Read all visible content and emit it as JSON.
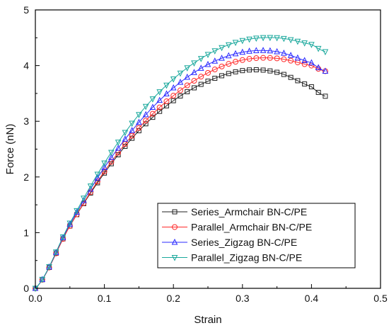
{
  "chart_data": {
    "type": "line",
    "title": "",
    "xlabel": "Strain",
    "ylabel": "Force (nN)",
    "xlim": [
      0.0,
      0.5
    ],
    "ylim": [
      0,
      5
    ],
    "xticks": [
      0.0,
      0.1,
      0.2,
      0.3,
      0.4,
      0.5
    ],
    "xtick_labels": [
      "0.0",
      "0.1",
      "0.2",
      "0.3",
      "0.4",
      "0.5"
    ],
    "yticks": [
      0,
      1,
      2,
      3,
      4,
      5
    ],
    "ytick_labels": [
      "0",
      "1",
      "2",
      "3",
      "4",
      "5"
    ],
    "grid": false,
    "legend_position": "lower-right",
    "series": [
      {
        "name": "Series_Armchair BN-C/PE",
        "color": "#222222",
        "marker": "square",
        "x_max": 0.42,
        "points": [
          [
            0,
            0
          ],
          [
            0.05,
            1.12
          ],
          [
            0.1,
            2.07
          ],
          [
            0.15,
            2.83
          ],
          [
            0.2,
            3.37
          ],
          [
            0.25,
            3.72
          ],
          [
            0.3,
            3.91
          ],
          [
            0.35,
            3.88
          ],
          [
            0.4,
            3.62
          ],
          [
            0.42,
            3.45
          ]
        ]
      },
      {
        "name": "Parallel_Armchair BN-C/PE",
        "color": "#ff2a2a",
        "marker": "circle",
        "x_max": 0.42,
        "points": [
          [
            0,
            0
          ],
          [
            0.05,
            1.12
          ],
          [
            0.1,
            2.1
          ],
          [
            0.15,
            2.88
          ],
          [
            0.2,
            3.46
          ],
          [
            0.25,
            3.87
          ],
          [
            0.3,
            4.1
          ],
          [
            0.35,
            4.13
          ],
          [
            0.4,
            4.0
          ],
          [
            0.42,
            3.9
          ]
        ]
      },
      {
        "name": "Series_Zigzag BN-C/PE",
        "color": "#2a2aff",
        "marker": "triangle-up",
        "x_max": 0.42,
        "points": [
          [
            0,
            0
          ],
          [
            0.05,
            1.15
          ],
          [
            0.1,
            2.17
          ],
          [
            0.15,
            2.98
          ],
          [
            0.2,
            3.6
          ],
          [
            0.25,
            4.02
          ],
          [
            0.3,
            4.24
          ],
          [
            0.35,
            4.25
          ],
          [
            0.4,
            4.05
          ],
          [
            0.42,
            3.9
          ]
        ]
      },
      {
        "name": "Parallel_Zigzag BN-C/PE",
        "color": "#1aa89c",
        "marker": "triangle-down",
        "x_max": 0.42,
        "points": [
          [
            0,
            0
          ],
          [
            0.05,
            1.17
          ],
          [
            0.1,
            2.25
          ],
          [
            0.15,
            3.12
          ],
          [
            0.2,
            3.76
          ],
          [
            0.25,
            4.2
          ],
          [
            0.3,
            4.45
          ],
          [
            0.35,
            4.5
          ],
          [
            0.4,
            4.38
          ],
          [
            0.42,
            4.25
          ]
        ]
      }
    ]
  }
}
